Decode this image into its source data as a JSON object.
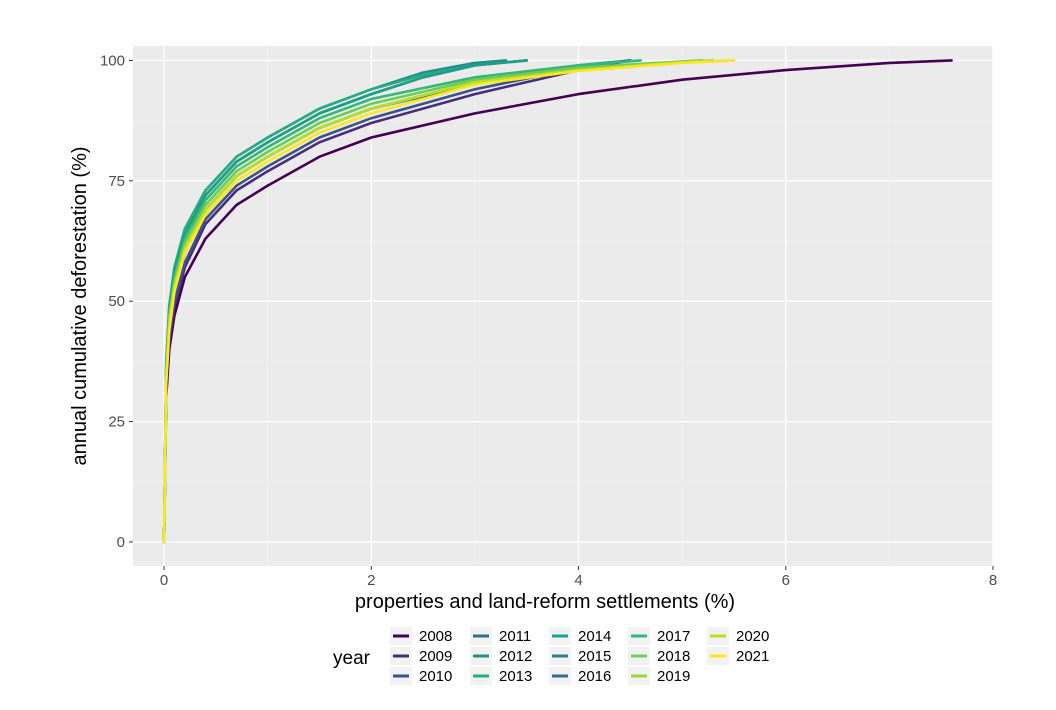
{
  "chart_data": {
    "type": "line",
    "xlabel": "properties and land-reform settlements (%)",
    "ylabel": "annual cumulative deforestation (%)",
    "xlim": [
      -0.3,
      8.0
    ],
    "ylim": [
      -5,
      103
    ],
    "x_ticks": [
      0,
      2,
      4,
      6,
      8
    ],
    "y_ticks": [
      0,
      25,
      50,
      75,
      100
    ],
    "grid": true,
    "legend_title": "year",
    "legend_position": "bottom",
    "series": [
      {
        "name": "2008",
        "color": "#440154",
        "x": [
          0,
          0.02,
          0.05,
          0.1,
          0.2,
          0.4,
          0.7,
          1.0,
          1.5,
          2.0,
          3.0,
          4.0,
          5.0,
          6.0,
          7.0,
          7.6
        ],
        "values": [
          0,
          30,
          40,
          47,
          55,
          63,
          70,
          74,
          80,
          84,
          89,
          93,
          96,
          98,
          99.5,
          100
        ]
      },
      {
        "name": "2009",
        "color": "#472D7B",
        "x": [
          0,
          0.02,
          0.05,
          0.1,
          0.2,
          0.4,
          0.7,
          1.0,
          1.5,
          2.0,
          3.0,
          4.0,
          4.5
        ],
        "values": [
          0,
          32,
          42,
          49,
          57,
          66,
          73,
          77,
          83,
          87,
          93,
          98,
          100
        ]
      },
      {
        "name": "2010",
        "color": "#3B528B",
        "x": [
          0,
          0.02,
          0.05,
          0.1,
          0.2,
          0.4,
          0.7,
          1.0,
          1.5,
          2.0,
          3.0,
          4.0,
          4.5
        ],
        "values": [
          0,
          33,
          43,
          50,
          58,
          67,
          74,
          78,
          84,
          88,
          94,
          98.5,
          100
        ]
      },
      {
        "name": "2011",
        "color": "#2C728E",
        "x": [
          0,
          0.02,
          0.05,
          0.1,
          0.2,
          0.4,
          0.7,
          1.0,
          1.5,
          2.0,
          2.5,
          3.0,
          3.5
        ],
        "values": [
          0,
          36,
          48,
          56,
          64,
          72,
          79,
          83,
          89,
          93,
          96.5,
          99,
          100
        ]
      },
      {
        "name": "2012",
        "color": "#21908C",
        "x": [
          0,
          0.02,
          0.05,
          0.1,
          0.2,
          0.4,
          0.7,
          1.0,
          1.5,
          2.0,
          2.5,
          3.0,
          3.3
        ],
        "values": [
          0,
          37,
          49,
          57,
          65,
          73,
          80,
          84,
          90,
          94,
          97.5,
          99.5,
          100
        ]
      },
      {
        "name": "2013",
        "color": "#27AD81",
        "x": [
          0,
          0.02,
          0.05,
          0.1,
          0.2,
          0.4,
          0.7,
          1.0,
          1.5,
          2.0,
          2.5,
          3.0,
          3.5
        ],
        "values": [
          0,
          37,
          49,
          57,
          65,
          73,
          80,
          84,
          90,
          94,
          97,
          99,
          100
        ]
      },
      {
        "name": "2014",
        "color": "#1F9E89",
        "x": [
          0,
          0.02,
          0.05,
          0.1,
          0.2,
          0.4,
          0.7,
          1.0,
          1.5,
          2.0,
          2.5,
          3.0,
          3.5
        ],
        "values": [
          0,
          36,
          48,
          56,
          64,
          72,
          79,
          83,
          89,
          93,
          96.5,
          99,
          100
        ]
      },
      {
        "name": "2015",
        "color": "#25858E",
        "x": [
          0,
          0.02,
          0.05,
          0.1,
          0.2,
          0.4,
          0.7,
          1.0,
          1.5,
          2.0,
          3.0,
          4.0,
          4.5
        ],
        "values": [
          0,
          34,
          45,
          52,
          60,
          69,
          76,
          80,
          86,
          90,
          95.5,
          99,
          100
        ]
      },
      {
        "name": "2016",
        "color": "#2E6E8E",
        "x": [
          0,
          0.02,
          0.05,
          0.1,
          0.2,
          0.4,
          0.7,
          1.0,
          1.5,
          2.0,
          3.0,
          4.0,
          4.5
        ],
        "values": [
          0,
          34,
          45,
          52,
          60,
          69,
          76,
          80,
          86,
          90,
          95,
          98.5,
          100
        ]
      },
      {
        "name": "2017",
        "color": "#35B779",
        "x": [
          0,
          0.02,
          0.05,
          0.1,
          0.2,
          0.4,
          0.7,
          1.0,
          1.5,
          2.0,
          3.0,
          4.0,
          4.6
        ],
        "values": [
          0,
          35,
          47,
          55,
          63,
          71,
          78,
          82,
          88,
          92,
          96.5,
          99,
          100
        ]
      },
      {
        "name": "2018",
        "color": "#6CCE59",
        "x": [
          0,
          0.02,
          0.05,
          0.1,
          0.2,
          0.4,
          0.7,
          1.0,
          1.5,
          2.0,
          3.0,
          4.0,
          5.0,
          5.2
        ],
        "values": [
          0,
          35,
          47,
          54,
          62,
          70,
          77,
          81,
          87,
          91,
          96,
          98.5,
          99.8,
          100
        ]
      },
      {
        "name": "2019",
        "color": "#95D840",
        "x": [
          0,
          0.02,
          0.05,
          0.1,
          0.2,
          0.4,
          0.7,
          1.0,
          1.5,
          2.0,
          3.0,
          4.0,
          5.0,
          5.3
        ],
        "values": [
          0,
          34,
          46,
          53,
          61,
          69,
          76,
          80,
          86,
          90,
          95.5,
          98,
          99.7,
          100
        ]
      },
      {
        "name": "2020",
        "color": "#B8DE29",
        "x": [
          0,
          0.02,
          0.05,
          0.1,
          0.2,
          0.4,
          0.7,
          1.0,
          1.5,
          2.0,
          3.0,
          4.0,
          5.0,
          5.5
        ],
        "values": [
          0,
          34,
          45,
          53,
          61,
          69,
          76,
          80,
          86,
          90,
          95.5,
          98,
          99.6,
          100
        ]
      },
      {
        "name": "2021",
        "color": "#FDE725",
        "x": [
          0,
          0.02,
          0.05,
          0.1,
          0.2,
          0.4,
          0.7,
          1.0,
          1.5,
          2.0,
          3.0,
          4.0,
          5.0,
          5.5
        ],
        "values": [
          0,
          33,
          44,
          52,
          60,
          68,
          75,
          79,
          85,
          89,
          95,
          97.8,
          99.5,
          100
        ]
      }
    ]
  },
  "colors": {
    "panel_background": "#EBEBEB",
    "grid_major": "#FFFFFF",
    "grid_minor": "#F2F2F2"
  }
}
